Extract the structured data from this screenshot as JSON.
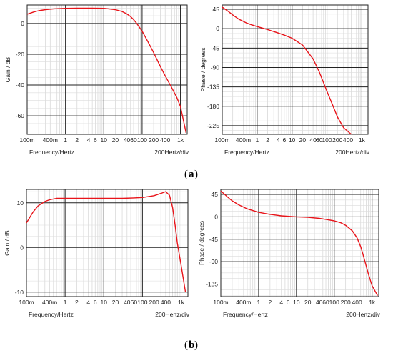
{
  "captions": [
    {
      "open": "(",
      "letter": "a",
      "close": ")"
    },
    {
      "open": "(",
      "letter": "b",
      "close": ")"
    }
  ],
  "chart_data": [
    {
      "id": "a-gain",
      "type": "line",
      "xlabel": "Frequency/Hertz",
      "ylabel": "Gain / dB",
      "div_label": "200Hertz/div",
      "xscale": "log",
      "xlim": [
        0.1,
        1500
      ],
      "ylim": [
        -72,
        12
      ],
      "x_ticks": [
        0.1,
        0.4,
        1,
        2,
        4,
        6,
        10,
        20,
        40,
        60,
        100,
        200,
        400,
        1000
      ],
      "x_tick_labels": [
        "100m",
        "400m",
        "1",
        "2",
        "4",
        "6",
        "10",
        "20",
        "40",
        "60",
        "100",
        "200",
        "400",
        "1k"
      ],
      "y_ticks": [
        0,
        -20,
        -40,
        -60
      ],
      "y_tick_labels": [
        "0",
        "-20",
        "-40",
        "-60"
      ],
      "major_x": [
        1,
        10,
        100,
        1000
      ],
      "grid": true,
      "series": [
        {
          "color": "#e8141a",
          "x": [
            0.1,
            0.15,
            0.2,
            0.3,
            0.5,
            1,
            2,
            5,
            10,
            20,
            30,
            40,
            50,
            60,
            70,
            80,
            100,
            150,
            200,
            300,
            400,
            600,
            800,
            1000,
            1400
          ],
          "y": [
            6.0,
            7.5,
            8.3,
            9.0,
            9.5,
            9.8,
            9.9,
            9.9,
            9.8,
            9.0,
            7.8,
            6.2,
            4.5,
            2.5,
            0.5,
            -1.5,
            -5.0,
            -13.0,
            -19.0,
            -28.0,
            -34.0,
            -42.0,
            -48.0,
            -54.0,
            -71.0
          ]
        }
      ]
    },
    {
      "id": "a-phase",
      "type": "line",
      "xlabel": "Frequency/Hertz",
      "ylabel": "Phase / degrees",
      "div_label": "200Hertz/div",
      "xscale": "log",
      "xlim": [
        0.1,
        1500
      ],
      "ylim": [
        -245,
        55
      ],
      "x_ticks": [
        0.1,
        0.4,
        1,
        2,
        4,
        6,
        10,
        20,
        40,
        60,
        100,
        200,
        400,
        1000
      ],
      "x_tick_labels": [
        "100m",
        "400m",
        "1",
        "2",
        "4",
        "6",
        "10",
        "20",
        "40",
        "60",
        "100",
        "200",
        "400",
        "1k"
      ],
      "y_ticks": [
        45,
        0,
        -45,
        -90,
        -135,
        -180,
        -225
      ],
      "y_tick_labels": [
        "45",
        "0",
        "-45",
        "-90",
        "-135",
        "-180",
        "-225"
      ],
      "major_x": [
        1,
        10,
        100,
        1000
      ],
      "grid": true,
      "series": [
        {
          "color": "#e8141a",
          "x": [
            0.1,
            0.15,
            0.2,
            0.3,
            0.5,
            0.7,
            1,
            2,
            4,
            6,
            10,
            20,
            40,
            60,
            100,
            150,
            200,
            300,
            500
          ],
          "y": [
            50,
            40,
            32,
            22,
            13,
            9,
            5,
            -2,
            -10,
            -15,
            -22,
            -38,
            -70,
            -100,
            -145,
            -180,
            -205,
            -230,
            -245
          ]
        }
      ]
    },
    {
      "id": "b-gain",
      "type": "line",
      "xlabel": "Frequency/Hertz",
      "ylabel": "Gain / dB",
      "div_label": "200Hertz/div",
      "xscale": "log",
      "xlim": [
        0.1,
        1500
      ],
      "ylim": [
        -11,
        13
      ],
      "x_ticks": [
        0.1,
        0.4,
        1,
        2,
        4,
        6,
        10,
        20,
        40,
        60,
        100,
        200,
        400,
        1000
      ],
      "x_tick_labels": [
        "100m",
        "400m",
        "1",
        "2",
        "4",
        "6",
        "10",
        "20",
        "40",
        "60",
        "100",
        "200",
        "400",
        "1k"
      ],
      "y_ticks": [
        10,
        0,
        -10
      ],
      "y_tick_labels": [
        "10",
        "0",
        "-10"
      ],
      "major_x": [
        1,
        10,
        100,
        1000
      ],
      "grid": true,
      "series": [
        {
          "color": "#e8141a",
          "x": [
            0.1,
            0.15,
            0.2,
            0.3,
            0.4,
            0.6,
            1,
            2,
            5,
            10,
            30,
            60,
            100,
            200,
            300,
            400,
            500,
            600,
            700,
            800,
            1000,
            1300
          ],
          "y": [
            5.5,
            8.0,
            9.3,
            10.3,
            10.7,
            11.0,
            11.0,
            11.0,
            11.0,
            11.0,
            11.0,
            11.1,
            11.2,
            11.6,
            12.1,
            12.5,
            11.7,
            9.0,
            5.0,
            1.0,
            -4.0,
            -10.0
          ]
        }
      ]
    },
    {
      "id": "b-phase",
      "type": "line",
      "xlabel": "Frequency/Hertz",
      "ylabel": "Phase / degrees",
      "div_label": "200Hertz/div",
      "xscale": "log",
      "xlim": [
        0.1,
        1500
      ],
      "ylim": [
        -160,
        55
      ],
      "x_ticks": [
        0.1,
        0.4,
        1,
        2,
        4,
        6,
        10,
        20,
        40,
        60,
        100,
        200,
        400,
        1000
      ],
      "x_tick_labels": [
        "100m",
        "400m",
        "1",
        "2",
        "4",
        "6",
        "10",
        "20",
        "40",
        "60",
        "100",
        "200",
        "400",
        "1k"
      ],
      "y_ticks": [
        45,
        0,
        -45,
        -90,
        -135
      ],
      "y_tick_labels": [
        "45",
        "0",
        "-45",
        "-90",
        "-135"
      ],
      "major_x": [
        1,
        10,
        100,
        1000
      ],
      "grid": true,
      "series": [
        {
          "color": "#e8141a",
          "x": [
            0.1,
            0.15,
            0.2,
            0.3,
            0.5,
            1,
            2,
            4,
            10,
            20,
            40,
            60,
            100,
            150,
            200,
            300,
            400,
            500,
            600,
            800,
            1000,
            1400
          ],
          "y": [
            52,
            40,
            32,
            24,
            16,
            9,
            5,
            2,
            0,
            -1,
            -3,
            -5,
            -8,
            -12,
            -17,
            -28,
            -42,
            -60,
            -80,
            -115,
            -138,
            -158
          ]
        }
      ]
    }
  ]
}
